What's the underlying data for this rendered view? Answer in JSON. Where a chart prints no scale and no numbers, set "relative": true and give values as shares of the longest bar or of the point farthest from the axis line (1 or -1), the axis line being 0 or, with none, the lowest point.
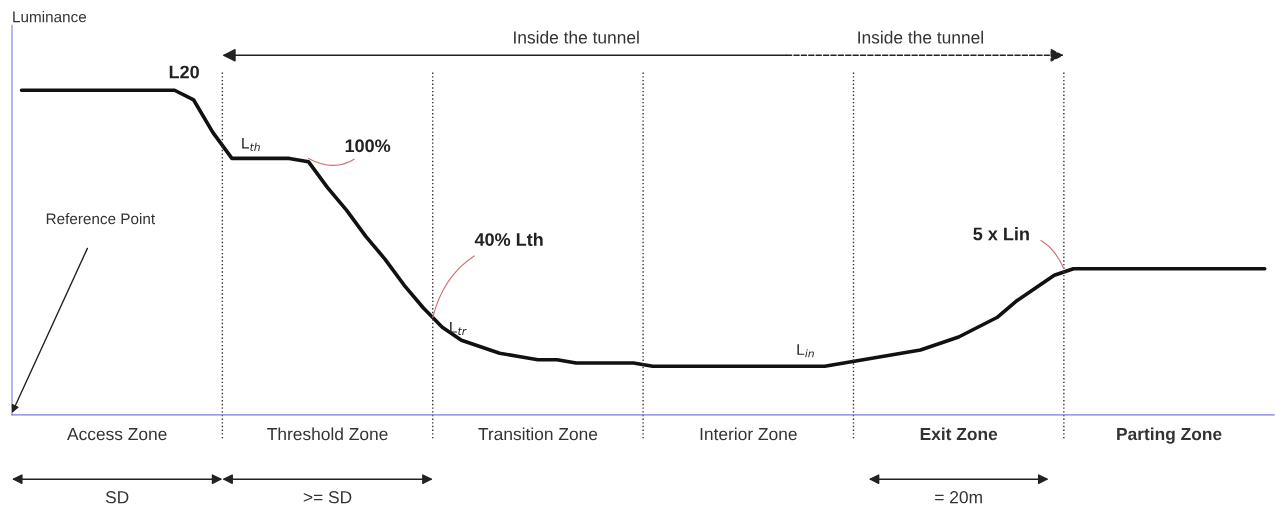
{
  "chart_data": {
    "type": "line",
    "relative": true,
    "ylabel": "Luminance",
    "tick_labels": "x",
    "categories": [
      null,
      null,
      null,
      null,
      null,
      "Access Zone",
      null,
      null,
      null,
      null,
      null,
      null,
      null,
      null,
      null,
      null,
      "Threshold Zone",
      null,
      null,
      null,
      null,
      null,
      null,
      null,
      null,
      null,
      null,
      "Transition Zone",
      null,
      null,
      null,
      null,
      null,
      null,
      null,
      null,
      null,
      null,
      "Interior Zone",
      null,
      null,
      null,
      null,
      null,
      null,
      null,
      null,
      null,
      null,
      "Exit Zone",
      null,
      null,
      null,
      null,
      null,
      null,
      null,
      null,
      null,
      null,
      "Parting Zone",
      null,
      null,
      null,
      null,
      null
    ],
    "series": [
      {
        "color": "#111111",
        "values": [
          1.0,
          1.0,
          1.0,
          1.0,
          1.0,
          1.0,
          1.0,
          1.0,
          1.0,
          0.97,
          0.87,
          0.79,
          0.79,
          0.79,
          0.79,
          0.78,
          0.7,
          0.63,
          0.55,
          0.48,
          0.4,
          0.33,
          0.27,
          0.23,
          0.21,
          0.19,
          0.18,
          0.17,
          0.17,
          0.16,
          0.16,
          0.16,
          0.16,
          0.15,
          0.15,
          0.15,
          0.15,
          0.15,
          0.15,
          0.15,
          0.15,
          0.15,
          0.15,
          0.16,
          0.17,
          0.18,
          0.19,
          0.2,
          0.22,
          0.24,
          0.27,
          0.3,
          0.35,
          0.39,
          0.43,
          0.45,
          0.45,
          0.45,
          0.45,
          0.45,
          0.45,
          0.45,
          0.45,
          0.45,
          0.45,
          0.45
        ]
      }
    ],
    "annotations": [
      "L20",
      "L$_{th}$",
      "100%",
      "40% Lth",
      "L$_{tr}$",
      "L$_{in}$",
      "5 x Lin",
      "Reference Point",
      "Inside the tunnel",
      "Inside the tunnel",
      "SD",
      ">= SD",
      "= 20m"
    ]
  }
}
